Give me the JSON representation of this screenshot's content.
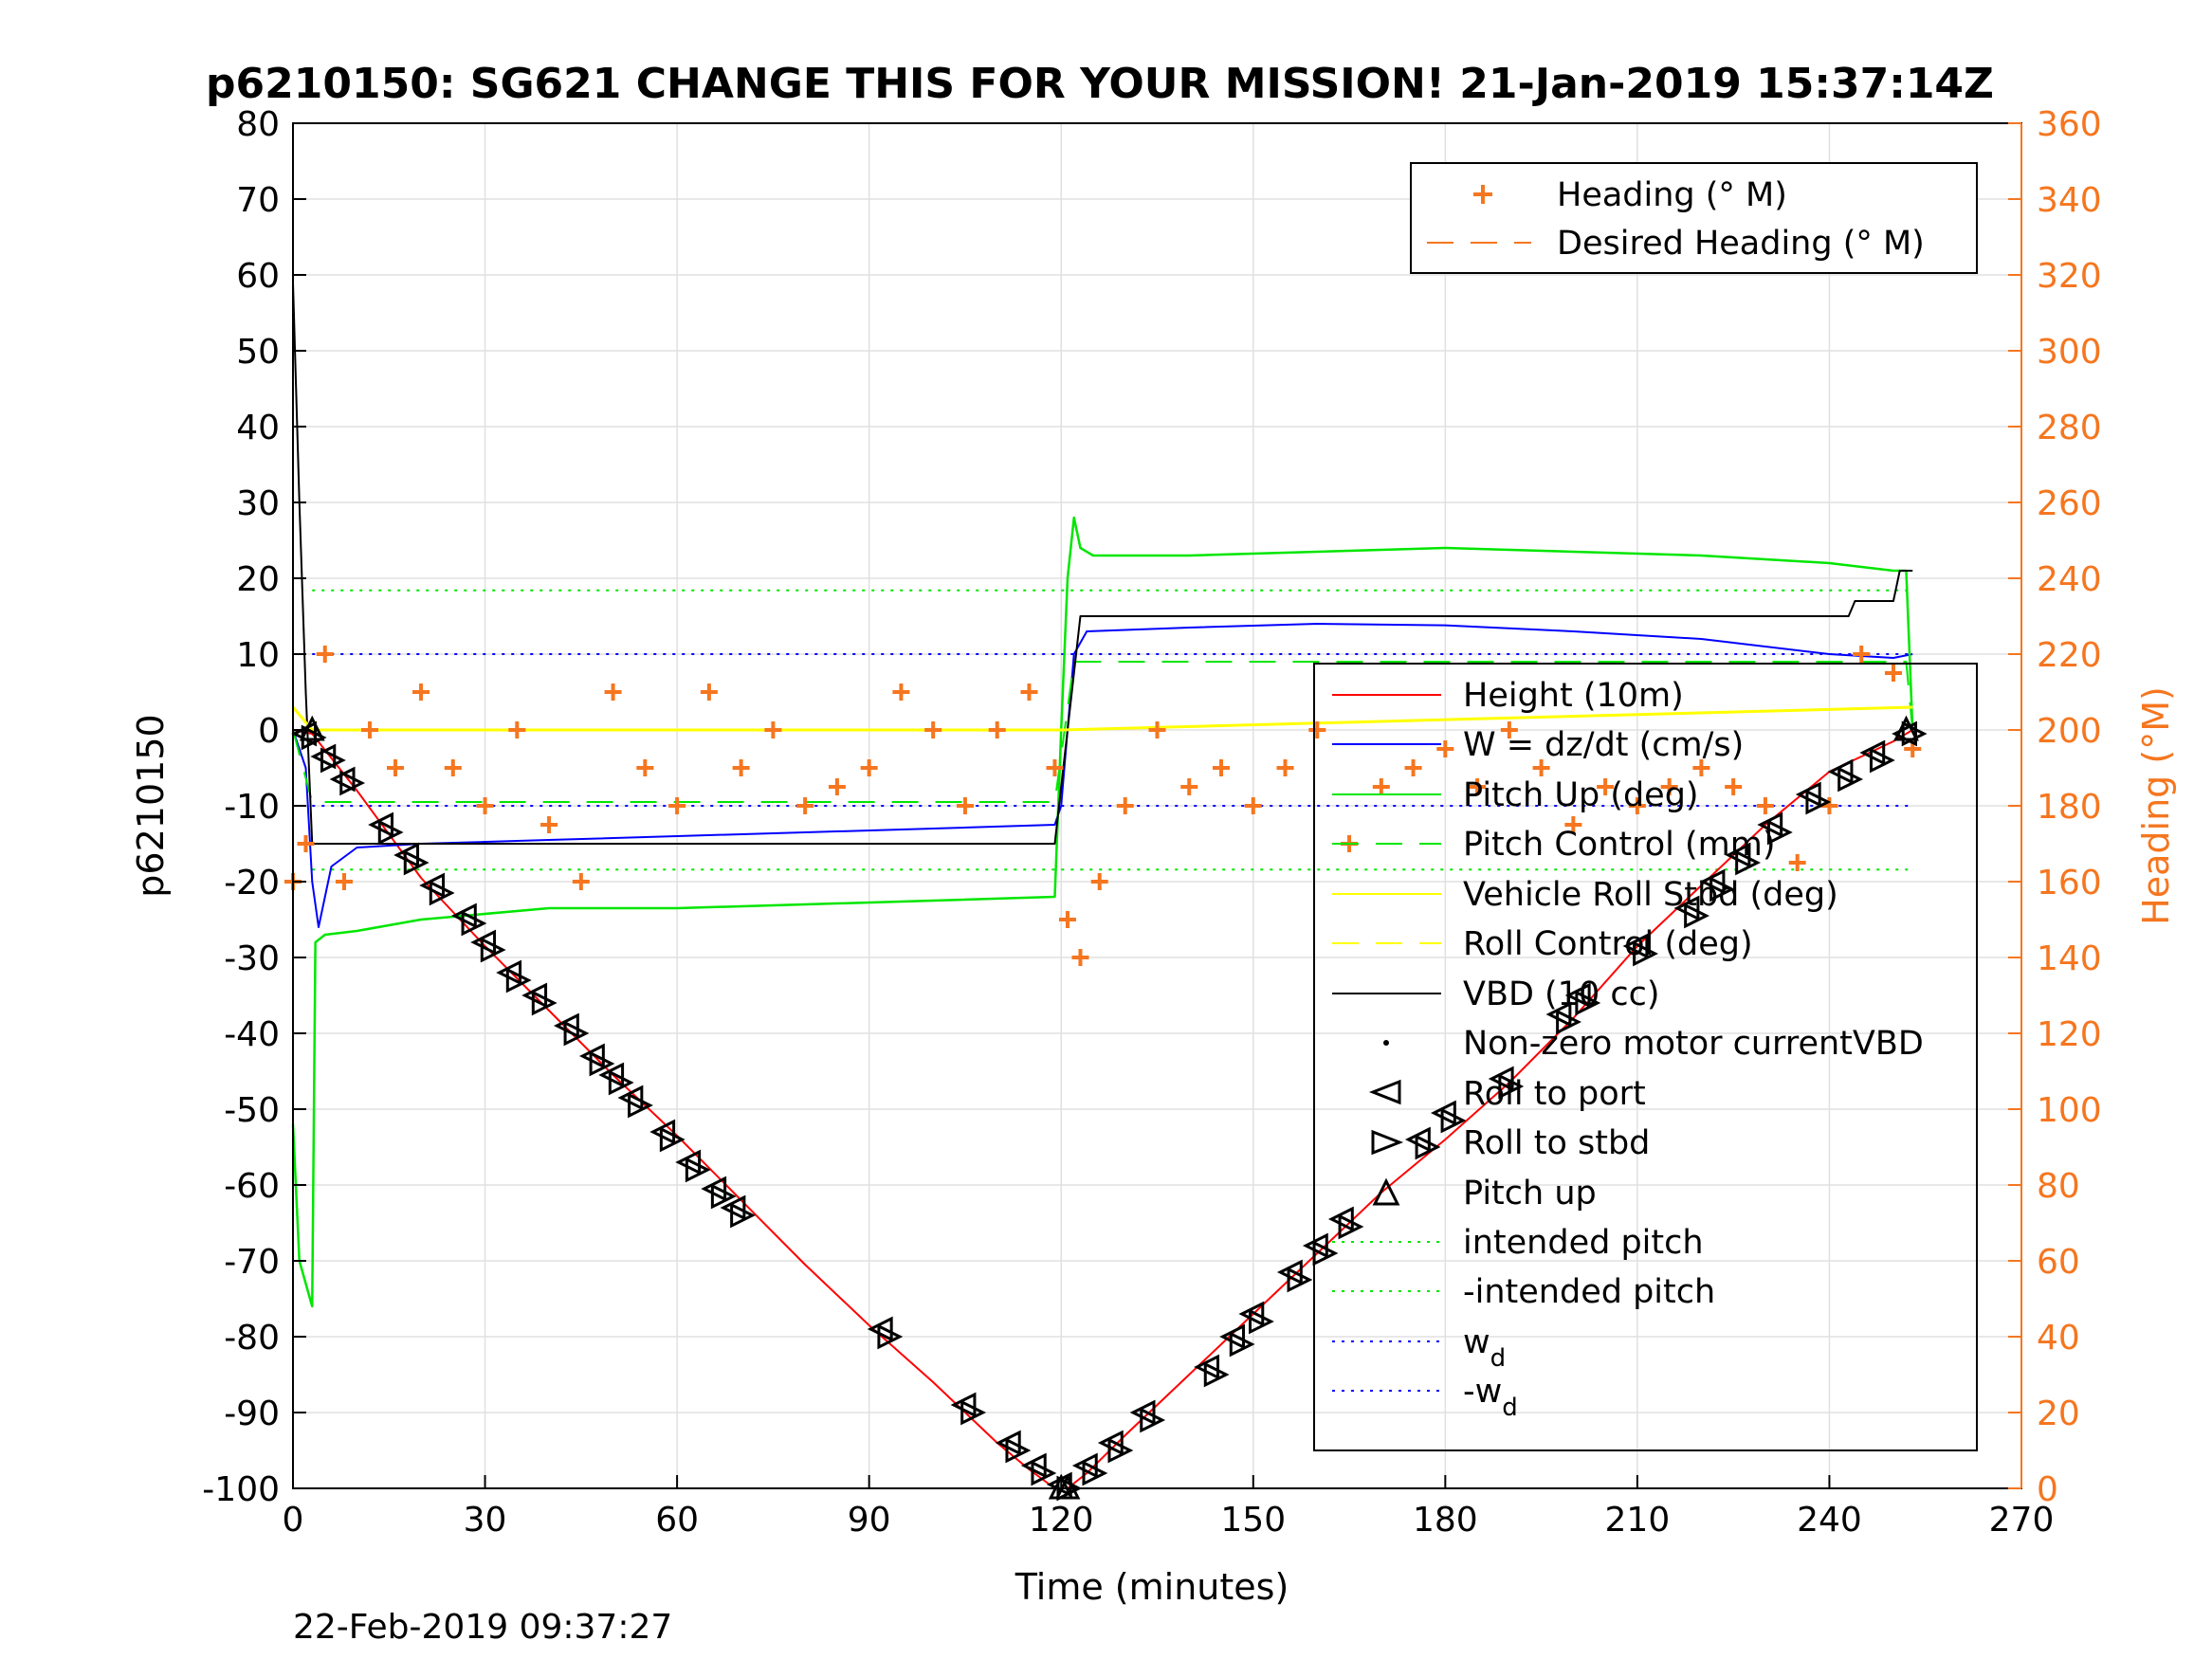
{
  "title": "p6210150: SG621 CHANGE THIS FOR YOUR MISSION! 21-Jan-2019 15:37:14Z",
  "footer_timestamp": "22-Feb-2019 09:37:27",
  "chart_data": {
    "type": "line",
    "title": "p6210150: SG621 CHANGE THIS FOR YOUR MISSION! 21-Jan-2019 15:37:14Z",
    "xlabel": "Time (minutes)",
    "ylabel": "p6210150",
    "y2label": "Heading (°M)",
    "xlim": [
      0,
      270
    ],
    "ylim": [
      -100,
      80
    ],
    "y2lim": [
      0,
      360
    ],
    "xticks": [
      "0",
      "30",
      "60",
      "90",
      "120",
      "150",
      "180",
      "210",
      "240",
      "270"
    ],
    "yticks": [
      "80",
      "70",
      "60",
      "50",
      "40",
      "30",
      "20",
      "10",
      "0",
      "-10",
      "-20",
      "-30",
      "-40",
      "-50",
      "-60",
      "-70",
      "-80",
      "-90",
      "-100"
    ],
    "y2ticks": [
      "360",
      "340",
      "320",
      "300",
      "280",
      "260",
      "240",
      "220",
      "200",
      "180",
      "160",
      "140",
      "120",
      "100",
      "80",
      "60",
      "40",
      "20",
      "0"
    ],
    "grid": true,
    "legend_heading": {
      "placement": "top-right",
      "entries": [
        "Heading (° M)",
        "Desired Heading (° M)"
      ]
    },
    "legend_main": {
      "placement": "right",
      "entries": [
        "Height (10m)",
        "W = dz/dt (cm/s)",
        "Pitch Up (deg)",
        "Pitch Control (mm)",
        "Vehicle Roll Stbd (deg)",
        "Roll Control (deg)",
        "VBD (10 cc)",
        "Non-zero motor currentVBD",
        "Roll to port",
        "Roll to stbd",
        "Pitch up",
        "intended pitch",
        "-intended pitch",
        "w",
        "-w"
      ],
      "subscript": "d"
    },
    "colors": {
      "height": "#ff0000",
      "w": "#0000ff",
      "pitch": "#00e600",
      "roll": "#ffff00",
      "vbd": "#000000",
      "heading": "#f5761f"
    },
    "reference_lines": {
      "intended_pitch": 18.4,
      "neg_intended_pitch": -18.4,
      "w_d": 10,
      "neg_w_d": -10
    },
    "series": [
      {
        "name": "Height (10m)",
        "x": [
          0,
          3,
          10,
          20,
          30,
          40,
          50,
          60,
          70,
          80,
          90,
          100,
          110,
          115,
          119,
          121,
          124,
          130,
          140,
          150,
          160,
          170,
          180,
          190,
          200,
          210,
          220,
          230,
          240,
          250,
          253
        ],
        "values": [
          0,
          -0.5,
          -8,
          -19.5,
          -28.5,
          -37,
          -45.5,
          -53.5,
          -62,
          -70.5,
          -78.5,
          -86,
          -94,
          -97.5,
          -100,
          -100,
          -98,
          -93,
          -85,
          -77,
          -69,
          -61,
          -54,
          -46.5,
          -38,
          -28.5,
          -20.5,
          -12.5,
          -5.5,
          -1.5,
          0
        ]
      },
      {
        "name": "W = dz/dt (cm/s)",
        "x": [
          0,
          2,
          3,
          4,
          6,
          10,
          20,
          40,
          60,
          80,
          100,
          119,
          120,
          122,
          124,
          140,
          160,
          180,
          200,
          220,
          240,
          250,
          253
        ],
        "values": [
          0,
          -5,
          -20,
          -26,
          -18,
          -15.5,
          -15,
          -14.5,
          -14,
          -13.5,
          -13,
          -12.5,
          -10,
          10,
          13,
          13.5,
          14,
          13.8,
          13,
          12,
          10,
          9.5,
          10
        ]
      },
      {
        "name": "Pitch Up (deg)",
        "x": [
          0,
          1,
          3,
          3.5,
          5,
          10,
          20,
          40,
          60,
          80,
          100,
          119,
          120,
          121,
          122,
          123,
          125,
          140,
          160,
          180,
          200,
          220,
          240,
          250,
          252,
          253
        ],
        "values": [
          -52,
          -70,
          -76,
          -28,
          -27,
          -26.5,
          -25,
          -23.5,
          -23.5,
          -23,
          -22.5,
          -22,
          0,
          20,
          28,
          24,
          23,
          23,
          23.5,
          24,
          23.5,
          23,
          22,
          21,
          21,
          0
        ]
      },
      {
        "name": "Pitch Control (mm)",
        "x": [
          0,
          3,
          119,
          122,
          252,
          253
        ],
        "values": [
          0,
          -9.5,
          -9.5,
          9,
          9,
          0
        ]
      },
      {
        "name": "VBD (10 cc)",
        "x": [
          0,
          1,
          2,
          3,
          119,
          123,
          210,
          243,
          244,
          250,
          251,
          253
        ],
        "values": [
          59,
          30,
          5,
          -15,
          -15,
          15,
          15,
          15,
          17,
          17,
          21,
          21
        ]
      },
      {
        "name": "Vehicle Roll Stbd (deg)",
        "x": [
          0,
          3,
          120,
          253
        ],
        "values": [
          3,
          0,
          0,
          3
        ]
      },
      {
        "name": "Heading (° M)",
        "axis": "right",
        "x": [
          0,
          2,
          5,
          8,
          12,
          16,
          20,
          25,
          30,
          35,
          40,
          45,
          50,
          55,
          60,
          65,
          70,
          75,
          80,
          85,
          90,
          95,
          100,
          105,
          110,
          115,
          119,
          121,
          123,
          126,
          130,
          135,
          140,
          145,
          150,
          155,
          160,
          165,
          170,
          175,
          180,
          185,
          190,
          195,
          200,
          205,
          210,
          215,
          220,
          225,
          230,
          235,
          240,
          245,
          250,
          253
        ],
        "values": [
          160,
          170,
          220,
          160,
          200,
          190,
          210,
          190,
          180,
          200,
          175,
          160,
          210,
          190,
          180,
          210,
          190,
          200,
          180,
          185,
          190,
          210,
          200,
          180,
          200,
          210,
          190,
          150,
          140,
          160,
          180,
          200,
          185,
          190,
          180,
          190,
          200,
          170,
          185,
          190,
          195,
          185,
          200,
          190,
          175,
          185,
          180,
          185,
          190,
          185,
          180,
          165,
          180,
          220,
          215,
          195
        ]
      }
    ],
    "markers": {
      "roll_to_port": {
        "x": [
          2,
          5,
          8,
          14,
          18,
          22,
          27,
          30,
          34,
          38,
          43,
          47,
          50,
          53,
          58,
          62,
          66,
          69,
          92,
          105,
          112,
          116,
          120,
          124,
          128,
          133,
          143,
          147,
          150,
          156,
          160,
          164,
          176,
          180,
          189,
          198,
          201,
          210,
          218,
          222,
          226,
          231,
          237,
          242,
          247,
          252
        ],
        "values": [
          -0.5,
          -3.5,
          -6.5,
          -12.5,
          -16.5,
          -20.5,
          -24.5,
          -28,
          -32,
          -35,
          -39,
          -43,
          -45.5,
          -48.5,
          -53,
          -57,
          -60.5,
          -63,
          -79,
          -89,
          -94,
          -97,
          -99.5,
          -97,
          -94,
          -90,
          -84,
          -80,
          -77,
          -71.5,
          -68,
          -64.5,
          -54,
          -50.5,
          -46,
          -37.5,
          -35,
          -28.5,
          -23.5,
          -20,
          -16.5,
          -12.5,
          -8.5,
          -5.5,
          -3,
          -0.5
        ]
      },
      "roll_to_stbd": {
        "x": [
          3,
          6,
          9,
          15,
          19,
          23,
          28,
          31,
          35,
          39,
          44,
          48,
          51,
          54,
          59,
          63,
          67,
          70,
          93,
          106,
          113,
          117,
          121,
          125,
          129,
          134,
          144,
          148,
          151,
          157,
          161,
          165,
          177,
          181,
          190,
          199,
          202,
          211,
          219,
          223,
          227,
          232,
          238,
          243,
          248,
          253
        ],
        "values": [
          -1,
          -4,
          -7,
          -13.5,
          -17.5,
          -21.5,
          -25.5,
          -29,
          -33,
          -36,
          -40,
          -44,
          -46.5,
          -49.5,
          -54,
          -58,
          -61.5,
          -64,
          -80,
          -90,
          -95,
          -98,
          -100,
          -98,
          -95,
          -91,
          -85,
          -81,
          -78,
          -72.5,
          -69,
          -65.5,
          -55,
          -51.5,
          -47,
          -38.5,
          -36,
          -29.5,
          -24.5,
          -21,
          -17.5,
          -13.5,
          -9.5,
          -6.5,
          -4,
          -0.5
        ]
      },
      "pitch_up": {
        "x": [
          3,
          120,
          121,
          252
        ],
        "values": [
          0,
          -100,
          -100,
          0
        ]
      }
    }
  }
}
